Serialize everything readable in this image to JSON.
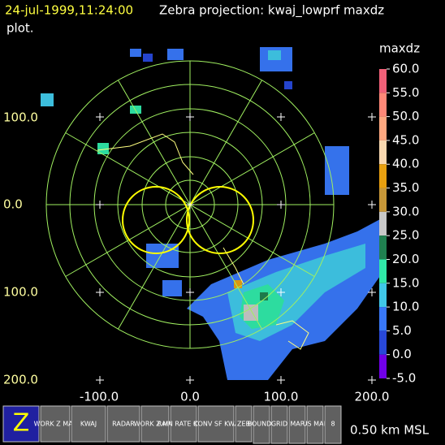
{
  "header": {
    "timestamp": "24-jul-1999,11:24:00",
    "title": "Zebra projection: kwaj_lowprf maxdz",
    "title_cont": "plot."
  },
  "plot": {
    "x_labels": [
      "-100.0",
      "0.0",
      "100.0",
      "200.0"
    ],
    "y_labels": [
      "100.0",
      "0.0",
      "100.0",
      "200.0"
    ]
  },
  "colorbar": {
    "field": "maxdz",
    "ticks": [
      {
        "value": 60,
        "label": "60.0"
      },
      {
        "value": 55,
        "label": "55.0"
      },
      {
        "value": 50,
        "label": "50.0"
      },
      {
        "value": 45,
        "label": "45.0"
      },
      {
        "value": 40,
        "label": "40.0"
      },
      {
        "value": 35,
        "label": "35.0"
      },
      {
        "value": 30,
        "label": "30.0"
      },
      {
        "value": 25,
        "label": "25.0"
      },
      {
        "value": 20,
        "label": "20.0"
      },
      {
        "value": 15,
        "label": "15.0"
      },
      {
        "value": 10,
        "label": "10.0"
      },
      {
        "value": 5,
        "label": "5.0"
      },
      {
        "value": 0,
        "label": "0.0"
      },
      {
        "value": -5,
        "label": "-5.0"
      }
    ],
    "colors": [
      "#f06078",
      "#ff8878",
      "#ffa880",
      "#f8d8b0",
      "#e8a010",
      "#c89838",
      "#c8c8c8",
      "#208050",
      "#30e8a8",
      "#40c8e8",
      "#3878f8",
      "#2848d8",
      "#7000e8"
    ]
  },
  "toolbar": {
    "icons": [
      "Z",
      "WORK Z MAP",
      "KWAJ",
      "RADAR",
      "WORK Z MAP",
      "RAIN RATE KWAJ",
      "CONV SF KWA",
      "ZEB",
      "BOUNDS",
      "GRID",
      "MAP",
      "US MAP",
      "8"
    ],
    "status": "0.50 km MSL"
  }
}
